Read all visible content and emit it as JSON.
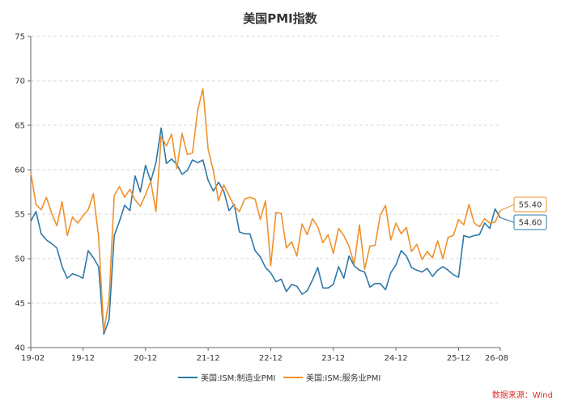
{
  "chart_data": {
    "type": "line",
    "title": "美国PMI指数",
    "source": "数据来源：Wind",
    "ylim": [
      40,
      75
    ],
    "yticks": [
      "40",
      "45",
      "50",
      "55",
      "60",
      "65",
      "70",
      "75"
    ],
    "xticks": [
      "19-02",
      "19-12",
      "20-12",
      "21-12",
      "22-12",
      "23-12",
      "24-12",
      "25-12",
      "26-08"
    ],
    "grid": true,
    "legend_position": "bottom",
    "colors": {
      "manufacturing": "#2e78a8",
      "services": "#f0912a",
      "source": "#d9302c"
    },
    "series": [
      {
        "name": "美国:ISM:制造业PMI",
        "callout": "54.60",
        "values": [
          54.2,
          55.3,
          52.8,
          52.1,
          51.7,
          51.2,
          49.1,
          47.8,
          48.3,
          48.1,
          47.8,
          50.9,
          50.1,
          49.1,
          41.5,
          43.1,
          52.6,
          54.2,
          56.0,
          55.4,
          59.3,
          57.5,
          60.5,
          58.7,
          60.8,
          64.7,
          60.7,
          61.2,
          60.6,
          59.5,
          59.9,
          61.1,
          60.8,
          61.1,
          58.8,
          57.6,
          58.6,
          57.6,
          55.4,
          56.1,
          53.0,
          52.8,
          52.8,
          50.9,
          50.2,
          49.0,
          48.4,
          47.4,
          47.7,
          46.3,
          47.1,
          46.9,
          46.0,
          46.4,
          47.6,
          49.0,
          46.7,
          46.7,
          47.1,
          49.1,
          47.8,
          50.3,
          49.2,
          48.7,
          48.5,
          46.8,
          47.2,
          47.2,
          46.5,
          48.4,
          49.3,
          50.9,
          50.3,
          49.0,
          48.7,
          48.5,
          48.9,
          48.0,
          48.7,
          49.1,
          48.7,
          48.2,
          47.9,
          52.6,
          52.4,
          52.6,
          52.7,
          54.0,
          53.4,
          55.6,
          54.6
        ]
      },
      {
        "name": "美国:ISM:服务业PMI",
        "callout": "55.40",
        "values": [
          59.7,
          56.1,
          55.5,
          56.9,
          55.1,
          53.7,
          56.4,
          52.6,
          54.7,
          54.0,
          54.8,
          55.5,
          57.3,
          52.5,
          41.8,
          45.4,
          57.1,
          58.1,
          56.9,
          57.8,
          56.6,
          55.9,
          57.2,
          58.7,
          55.3,
          63.7,
          62.7,
          64.0,
          60.1,
          64.1,
          61.7,
          61.9,
          66.7,
          69.1,
          62.3,
          59.9,
          56.5,
          58.3,
          57.1,
          55.9,
          55.3,
          56.7,
          56.9,
          56.7,
          54.4,
          56.5,
          49.2,
          55.2,
          55.1,
          51.2,
          51.9,
          50.3,
          53.9,
          52.7,
          54.5,
          53.6,
          51.8,
          52.7,
          50.6,
          53.4,
          52.6,
          51.4,
          49.4,
          53.8,
          48.8,
          51.4,
          51.5,
          54.9,
          56.0,
          52.1,
          54.0,
          52.8,
          53.5,
          50.8,
          51.6,
          49.9,
          50.8,
          50.1,
          52.0,
          50.0,
          52.4,
          52.6,
          54.4,
          53.8,
          56.1,
          54.0,
          53.6,
          54.5,
          54.0,
          54.1,
          55.4
        ]
      }
    ]
  }
}
